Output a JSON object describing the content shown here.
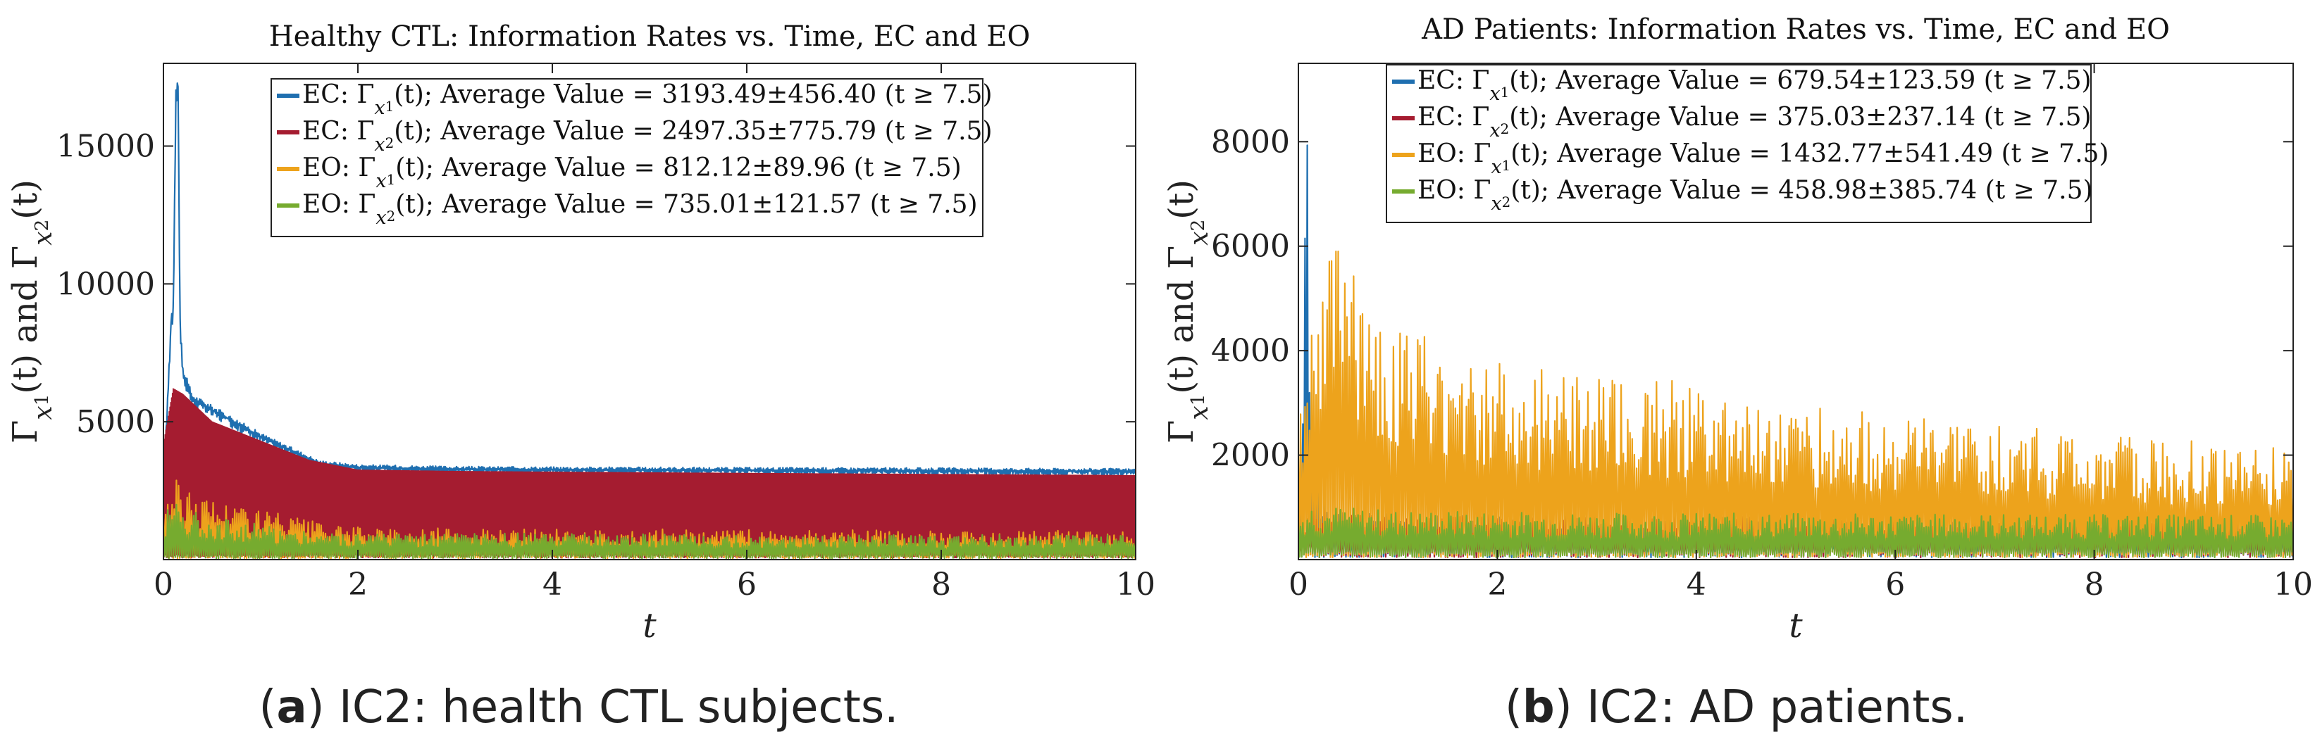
{
  "chart_data": [
    {
      "type": "line",
      "title": "Healthy CTL: Information Rates vs. Time, EC and EO",
      "xlabel": "t",
      "ylabel": "Γx1(t) and Γx2(t)",
      "xlim": [
        0,
        10
      ],
      "ylim": [
        0,
        18000
      ],
      "xticks": [
        0,
        2,
        4,
        6,
        8,
        10
      ],
      "yticks": [
        5000,
        10000,
        15000
      ],
      "grid": false,
      "legend_position": "top",
      "caption_label": "a",
      "caption_text": "IC2: health CTL subjects.",
      "series": [
        {
          "name": "EC: Γx1(t); Average Value = 3193.49±456.40 (t ≥ 7.5)",
          "color": "#1f6fb0",
          "x": [
            0,
            0.08,
            0.1,
            0.13,
            0.15,
            0.17,
            0.2,
            0.3,
            0.5,
            0.8,
            1.0,
            1.3,
            1.6,
            2.0,
            3.0,
            5.0,
            7.5,
            10
          ],
          "y": [
            2500,
            9000,
            9300,
            17800,
            17800,
            9000,
            7000,
            6000,
            5600,
            5000,
            4600,
            4100,
            3600,
            3450,
            3380,
            3350,
            3330,
            3300
          ]
        },
        {
          "name": "EC: Γx2(t); Average Value = 2497.35±775.79 (t ≥ 7.5)",
          "color": "#a51c30",
          "x": [
            0,
            0.1,
            0.2,
            0.5,
            1.0,
            1.5,
            2.0,
            3.0,
            5.0,
            7.5,
            10
          ],
          "y": [
            4200,
            6200,
            6000,
            5000,
            4300,
            3600,
            3250,
            3200,
            3150,
            3100,
            3050
          ]
        },
        {
          "name": "EO: Γx1(t); Average Value = 812.12±89.96 (t ≥ 7.5)",
          "color": "#eda31c",
          "x": [
            0,
            0.1,
            0.3,
            0.6,
            1.0,
            1.4,
            1.8,
            2.5,
            4.0,
            6.0,
            8.0,
            10
          ],
          "y": [
            2300,
            3000,
            2500,
            2200,
            1900,
            1500,
            1200,
            1150,
            1100,
            1100,
            1050,
            1050
          ]
        },
        {
          "name": "EO: Γx2(t); Average Value = 735.01±121.57 (t ≥ 7.5)",
          "color": "#76ab2f",
          "x": [
            0,
            0.1,
            0.3,
            0.6,
            1.0,
            1.4,
            1.8,
            2.5,
            4.0,
            6.0,
            8.0,
            10
          ],
          "y": [
            1500,
            2400,
            1800,
            1500,
            1300,
            1100,
            1000,
            950,
            950,
            900,
            900,
            900
          ]
        }
      ]
    },
    {
      "type": "line",
      "title": "AD Patients: Information Rates vs. Time, EC and EO",
      "xlabel": "t",
      "ylabel": "Γx1(t) and Γx2(t)",
      "xlim": [
        0,
        10
      ],
      "ylim": [
        0,
        9500
      ],
      "xticks": [
        0,
        2,
        4,
        6,
        8,
        10
      ],
      "yticks": [
        2000,
        4000,
        6000,
        8000
      ],
      "grid": false,
      "legend_position": "top",
      "caption_label": "b",
      "caption_text": "IC2: AD patients.",
      "series": [
        {
          "name": "EC: Γx1(t); Average Value = 679.54±123.59 (t ≥ 7.5)",
          "color": "#1f6fb0",
          "x": [
            0,
            0.05,
            0.08,
            0.1,
            0.12,
            0.15,
            0.3,
            1.0,
            3.0,
            6.0,
            10
          ],
          "y": [
            800,
            4000,
            9200,
            9200,
            4500,
            2200,
            1000,
            850,
            800,
            780,
            750
          ]
        },
        {
          "name": "EC: Γx2(t); Average Value = 375.03±237.14 (t ≥ 7.5)",
          "color": "#a51c30",
          "x": [
            0,
            0.1,
            0.5,
            1.0,
            3.0,
            6.0,
            10
          ],
          "y": [
            700,
            1000,
            900,
            900,
            850,
            800,
            800
          ]
        },
        {
          "name": "EO: Γx1(t); Average Value = 1432.77±541.49 (t ≥ 7.5)",
          "color": "#eda31c",
          "x": [
            0,
            0.3,
            0.5,
            0.8,
            1.0,
            1.5,
            2.0,
            3.0,
            4.0,
            5.0,
            6.0,
            7.0,
            8.0,
            9.0,
            10
          ],
          "y": [
            3000,
            6300,
            6200,
            4800,
            4600,
            4100,
            3800,
            3500,
            3400,
            3000,
            2800,
            2600,
            2400,
            2300,
            2200
          ]
        },
        {
          "name": "EO: Γx2(t); Average Value = 458.98±385.74 (t ≥ 7.5)",
          "color": "#76ab2f",
          "x": [
            0,
            0.1,
            0.5,
            1.0,
            3.0,
            6.0,
            10
          ],
          "y": [
            900,
            1100,
            1000,
            950,
            900,
            880,
            850
          ]
        }
      ]
    }
  ]
}
